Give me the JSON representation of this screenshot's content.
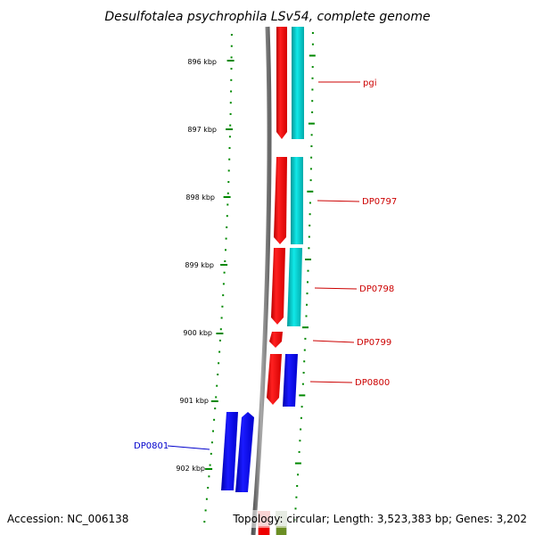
{
  "title": "Desulfotalea psychrophila LSv54, complete genome",
  "accession": "Accession: NC_006138",
  "summary": "Topology: circular; Length: 3,523,383 bp; Genes: 3,202",
  "ticks": [
    "896 kbp",
    "897 kbp",
    "898 kbp",
    "899 kbp",
    "900 kbp",
    "901 kbp",
    "902 kbp"
  ],
  "gene_labels": [
    {
      "name": "pgi",
      "strand": "forward"
    },
    {
      "name": "DP0797",
      "strand": "forward"
    },
    {
      "name": "DP0798",
      "strand": "forward"
    },
    {
      "name": "DP0799",
      "strand": "forward"
    },
    {
      "name": "DP0800",
      "strand": "forward"
    },
    {
      "name": "DP0801",
      "strand": "reverse"
    }
  ],
  "colors": {
    "forward_label": "#cc0000",
    "reverse_label": "#0000cc",
    "cds_red": "#ff0000",
    "cds_cyan": "#00cccc",
    "cds_blue": "#0000ee",
    "tick": "#008800",
    "backbone": "#888888"
  }
}
